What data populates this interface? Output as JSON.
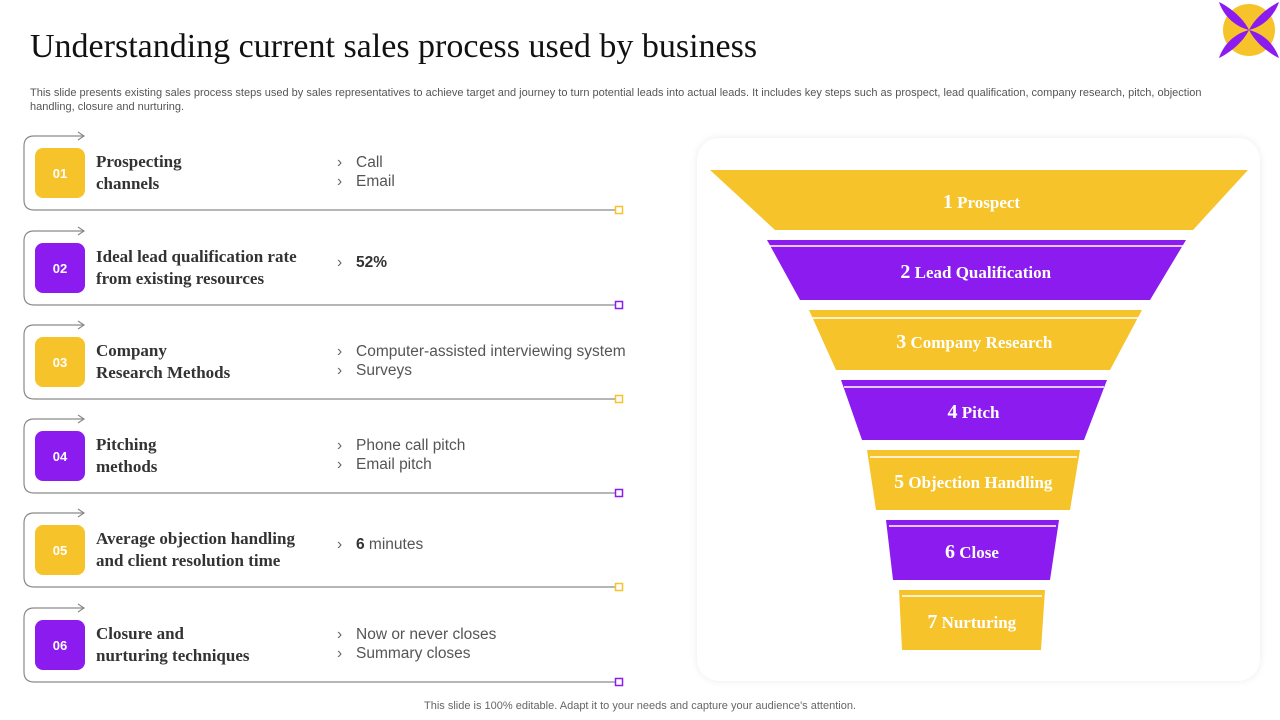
{
  "title": "Understanding current sales process used by business",
  "subtitle": "This slide presents existing sales process steps used by sales representatives to achieve target and journey to turn potential leads into actual leads. It includes key steps such as prospect, lead qualification, company research, pitch, objection handling, closure and nurturing.",
  "footer": "This slide is 100% editable. Adapt it to your needs and capture your audience's attention.",
  "colors": {
    "yellow": "#F6C42A",
    "purple": "#8C1BF0",
    "text": "#333333"
  },
  "steps": [
    {
      "num": "01",
      "title_lines": [
        "Prospecting",
        "channels"
      ],
      "color": "yellow",
      "bullets": [
        {
          "text": "Call"
        },
        {
          "text": "Email"
        }
      ]
    },
    {
      "num": "02",
      "title_lines": [
        "Ideal lead qualification rate",
        "from existing resources"
      ],
      "color": "purple",
      "bullets": [
        {
          "bold": "52%",
          "text": ""
        }
      ]
    },
    {
      "num": "03",
      "title_lines": [
        "Company",
        "Research Methods"
      ],
      "color": "yellow",
      "bullets": [
        {
          "text": "Computer-assisted interviewing system"
        },
        {
          "text": "Surveys"
        }
      ]
    },
    {
      "num": "04",
      "title_lines": [
        "Pitching",
        "methods"
      ],
      "color": "purple",
      "bullets": [
        {
          "text": "Phone call pitch"
        },
        {
          "text": "Email pitch"
        }
      ]
    },
    {
      "num": "05",
      "title_lines": [
        "Average objection handling",
        "and client resolution time"
      ],
      "color": "yellow",
      "bullets": [
        {
          "bold": "6",
          "text": " minutes"
        }
      ]
    },
    {
      "num": "06",
      "title_lines": [
        "Closure and",
        "nurturing techniques"
      ],
      "color": "purple",
      "bullets": [
        {
          "text": "Now or never closes"
        },
        {
          "text": "Summary closes"
        }
      ]
    }
  ],
  "funnel": [
    {
      "num": "1",
      "label": "Prospect",
      "color": "yellow"
    },
    {
      "num": "2",
      "label": "Lead Qualification",
      "color": "purple"
    },
    {
      "num": "3",
      "label": "Company Research",
      "color": "yellow"
    },
    {
      "num": "4",
      "label": "Pitch",
      "color": "purple"
    },
    {
      "num": "5",
      "label": "Objection Handling",
      "color": "yellow"
    },
    {
      "num": "6",
      "label": "Close",
      "color": "purple"
    },
    {
      "num": "7",
      "label": "Nurturing",
      "color": "yellow"
    }
  ]
}
